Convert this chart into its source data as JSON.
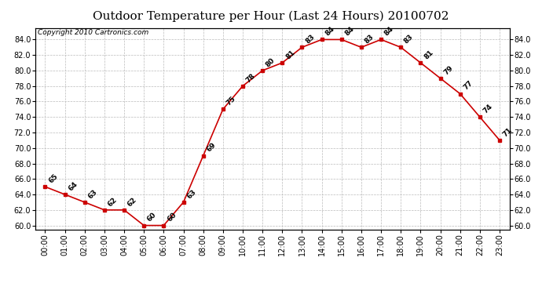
{
  "title": "Outdoor Temperature per Hour (Last 24 Hours) 20100702",
  "copyright": "Copyright 2010 Cartronics.com",
  "hours": [
    "00:00",
    "01:00",
    "02:00",
    "03:00",
    "04:00",
    "05:00",
    "06:00",
    "07:00",
    "08:00",
    "09:00",
    "10:00",
    "11:00",
    "12:00",
    "13:00",
    "14:00",
    "15:00",
    "16:00",
    "17:00",
    "18:00",
    "19:00",
    "20:00",
    "21:00",
    "22:00",
    "23:00"
  ],
  "temps": [
    65,
    64,
    63,
    62,
    62,
    60,
    60,
    63,
    69,
    75,
    78,
    80,
    81,
    83,
    84,
    84,
    83,
    84,
    83,
    81,
    79,
    77,
    74,
    71
  ],
  "ylim_min": 59.5,
  "ylim_max": 85.5,
  "line_color": "#cc0000",
  "marker_color": "#cc0000",
  "bg_color": "#ffffff",
  "grid_color": "#bbbbbb",
  "title_fontsize": 11,
  "tick_fontsize": 7,
  "copyright_fontsize": 6.5,
  "label_fontsize": 6.5,
  "yticks": [
    60.0,
    62.0,
    64.0,
    66.0,
    68.0,
    70.0,
    72.0,
    74.0,
    76.0,
    78.0,
    80.0,
    82.0,
    84.0
  ]
}
